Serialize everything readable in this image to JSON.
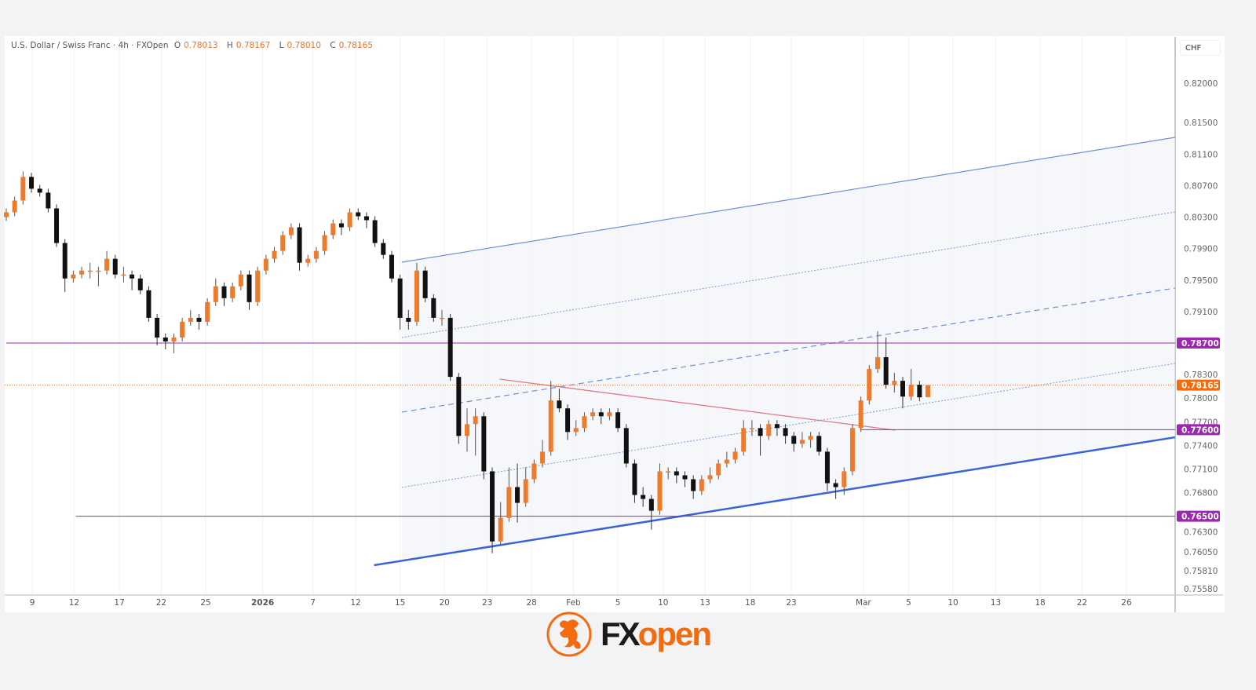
{
  "header": {
    "symbol": "U.S. Dollar / Swiss Franc · 4h · FXOpen",
    "open_label": "O",
    "open": "0.78013",
    "high_label": "H",
    "high": "0.78167",
    "low_label": "L",
    "low": "0.78010",
    "close_label": "C",
    "close": "0.78165"
  },
  "currency": "CHF",
  "logo": {
    "part1": "FX",
    "part2": "open"
  },
  "colors": {
    "bull": "#ee7a2c",
    "bear": "#111111",
    "level": "#9c27b0",
    "current": "#f26b0f",
    "channel": "#4a6fd1",
    "trend": "#e07a8a"
  },
  "chart_data": {
    "type": "candlestick",
    "title": "U.S. Dollar / Swiss Franc · 4h · FXOpen",
    "ylim": [
      0.754,
      0.826
    ],
    "yticks": [
      "0.82000",
      "0.81500",
      "0.81100",
      "0.80700",
      "0.80300",
      "0.79900",
      "0.79500",
      "0.79100",
      "0.78300",
      "0.78000",
      "0.77700",
      "0.77400",
      "0.77100",
      "0.76800",
      "0.76300",
      "0.76050",
      "0.75810",
      "0.75580"
    ],
    "xticks": [
      {
        "label": "9",
        "bar": 4.1
      },
      {
        "label": "12",
        "bar": 9.1
      },
      {
        "label": "17",
        "bar": 14.5
      },
      {
        "label": "22",
        "bar": 19.5
      },
      {
        "label": "25",
        "bar": 24.8
      },
      {
        "label": "2026",
        "bar": 31.6,
        "bold": true
      },
      {
        "label": "7",
        "bar": 37.6
      },
      {
        "label": "12",
        "bar": 42.7
      },
      {
        "label": "15",
        "bar": 48.0
      },
      {
        "label": "20",
        "bar": 53.3
      },
      {
        "label": "23",
        "bar": 58.4
      },
      {
        "label": "28",
        "bar": 63.7
      },
      {
        "label": "Feb",
        "bar": 68.7
      },
      {
        "label": "5",
        "bar": 74.0
      },
      {
        "label": "10",
        "bar": 79.4
      },
      {
        "label": "13",
        "bar": 84.4
      },
      {
        "label": "18",
        "bar": 89.8
      },
      {
        "label": "23",
        "bar": 94.7
      },
      {
        "label": "Mar",
        "bar": 103.3
      },
      {
        "label": "5",
        "bar": 108.7
      },
      {
        "label": "10",
        "bar": 114.0
      },
      {
        "label": "13",
        "bar": 119.1
      },
      {
        "label": "18",
        "bar": 124.4
      },
      {
        "label": "22",
        "bar": 129.4
      },
      {
        "label": "26",
        "bar": 134.7
      }
    ],
    "candles_ohlc": [
      [
        0.803,
        0.8041,
        0.8025,
        0.8036
      ],
      [
        0.8036,
        0.8056,
        0.8031,
        0.8051
      ],
      [
        0.8051,
        0.8088,
        0.8046,
        0.8081
      ],
      [
        0.8081,
        0.8086,
        0.8061,
        0.8066
      ],
      [
        0.8066,
        0.8071,
        0.8056,
        0.8061
      ],
      [
        0.8061,
        0.8066,
        0.8036,
        0.8041
      ],
      [
        0.8041,
        0.8046,
        0.7992,
        0.7997
      ],
      [
        0.7997,
        0.8002,
        0.7935,
        0.7952
      ],
      [
        0.7952,
        0.7962,
        0.7947,
        0.7957
      ],
      [
        0.7957,
        0.7967,
        0.7952,
        0.7962
      ],
      [
        0.7962,
        0.7972,
        0.7952,
        0.7962
      ],
      [
        0.7962,
        0.7967,
        0.7942,
        0.7962
      ],
      [
        0.7962,
        0.7987,
        0.7957,
        0.7977
      ],
      [
        0.7977,
        0.7982,
        0.7952,
        0.7957
      ],
      [
        0.7957,
        0.7967,
        0.7947,
        0.7957
      ],
      [
        0.7957,
        0.7962,
        0.7937,
        0.7952
      ],
      [
        0.7952,
        0.7957,
        0.7932,
        0.7937
      ],
      [
        0.7937,
        0.7942,
        0.7897,
        0.7902
      ],
      [
        0.7902,
        0.7907,
        0.7867,
        0.7877
      ],
      [
        0.7877,
        0.7882,
        0.7862,
        0.7872
      ],
      [
        0.7872,
        0.7882,
        0.7857,
        0.7877
      ],
      [
        0.7877,
        0.7902,
        0.7872,
        0.7897
      ],
      [
        0.7897,
        0.7912,
        0.7892,
        0.7902
      ],
      [
        0.7902,
        0.7907,
        0.7887,
        0.7897
      ],
      [
        0.7897,
        0.7927,
        0.7892,
        0.7922
      ],
      [
        0.7922,
        0.7952,
        0.7917,
        0.7942
      ],
      [
        0.7942,
        0.7947,
        0.7917,
        0.7927
      ],
      [
        0.7927,
        0.7947,
        0.7922,
        0.7942
      ],
      [
        0.7942,
        0.7962,
        0.7937,
        0.7957
      ],
      [
        0.7957,
        0.7962,
        0.7912,
        0.7922
      ],
      [
        0.7922,
        0.7967,
        0.7917,
        0.7962
      ],
      [
        0.7962,
        0.7982,
        0.7957,
        0.7977
      ],
      [
        0.7977,
        0.7992,
        0.7972,
        0.7987
      ],
      [
        0.7987,
        0.8012,
        0.7982,
        0.8007
      ],
      [
        0.8007,
        0.8022,
        0.8002,
        0.8017
      ],
      [
        0.8017,
        0.8022,
        0.7962,
        0.7972
      ],
      [
        0.7972,
        0.7982,
        0.7967,
        0.7977
      ],
      [
        0.7977,
        0.7992,
        0.7972,
        0.7987
      ],
      [
        0.7987,
        0.8012,
        0.7982,
        0.8007
      ],
      [
        0.8007,
        0.8027,
        0.8002,
        0.8022
      ],
      [
        0.8022,
        0.8027,
        0.8007,
        0.8017
      ],
      [
        0.8017,
        0.8041,
        0.8012,
        0.8036
      ],
      [
        0.8036,
        0.8041,
        0.8026,
        0.8031
      ],
      [
        0.8031,
        0.8036,
        0.8016,
        0.8026
      ],
      [
        0.8026,
        0.8031,
        0.7992,
        0.7997
      ],
      [
        0.7997,
        0.8002,
        0.7977,
        0.7982
      ],
      [
        0.7982,
        0.7987,
        0.7947,
        0.7952
      ],
      [
        0.7952,
        0.7957,
        0.7887,
        0.7902
      ],
      [
        0.7902,
        0.7912,
        0.7887,
        0.7897
      ],
      [
        0.7897,
        0.7972,
        0.7892,
        0.7962
      ],
      [
        0.7962,
        0.7967,
        0.7922,
        0.7927
      ],
      [
        0.7927,
        0.7932,
        0.7897,
        0.7902
      ],
      [
        0.7902,
        0.7912,
        0.7892,
        0.7902
      ],
      [
        0.7902,
        0.7907,
        0.7822,
        0.7827
      ],
      [
        0.7827,
        0.7832,
        0.7742,
        0.7752
      ],
      [
        0.7752,
        0.7787,
        0.7732,
        0.7767
      ],
      [
        0.7767,
        0.7787,
        0.7727,
        0.7777
      ],
      [
        0.7777,
        0.7782,
        0.7697,
        0.7707
      ],
      [
        0.7707,
        0.7712,
        0.7603,
        0.7618
      ],
      [
        0.7618,
        0.7668,
        0.7613,
        0.7648
      ],
      [
        0.7648,
        0.7712,
        0.7643,
        0.7687
      ],
      [
        0.7687,
        0.7717,
        0.7642,
        0.7667
      ],
      [
        0.7667,
        0.7712,
        0.7662,
        0.7697
      ],
      [
        0.7697,
        0.7722,
        0.7692,
        0.7717
      ],
      [
        0.7717,
        0.7747,
        0.7712,
        0.7732
      ],
      [
        0.7732,
        0.7822,
        0.7727,
        0.7797
      ],
      [
        0.7797,
        0.7812,
        0.7782,
        0.7787
      ],
      [
        0.7787,
        0.7792,
        0.7747,
        0.7757
      ],
      [
        0.7757,
        0.7772,
        0.7752,
        0.7762
      ],
      [
        0.7762,
        0.7782,
        0.7757,
        0.7777
      ],
      [
        0.7777,
        0.7787,
        0.7772,
        0.7782
      ],
      [
        0.7782,
        0.7787,
        0.7767,
        0.7777
      ],
      [
        0.7777,
        0.7787,
        0.7772,
        0.7782
      ],
      [
        0.7782,
        0.7787,
        0.7757,
        0.7762
      ],
      [
        0.7762,
        0.7767,
        0.7712,
        0.7717
      ],
      [
        0.7717,
        0.7722,
        0.7667,
        0.7677
      ],
      [
        0.7677,
        0.7687,
        0.7662,
        0.7672
      ],
      [
        0.7672,
        0.7677,
        0.7633,
        0.7657
      ],
      [
        0.7657,
        0.7717,
        0.7652,
        0.7707
      ],
      [
        0.7707,
        0.7712,
        0.7697,
        0.7707
      ],
      [
        0.7707,
        0.7712,
        0.7692,
        0.7702
      ],
      [
        0.7702,
        0.7707,
        0.7687,
        0.7697
      ],
      [
        0.7697,
        0.7702,
        0.7672,
        0.7682
      ],
      [
        0.7682,
        0.7702,
        0.7677,
        0.7697
      ],
      [
        0.7697,
        0.7712,
        0.7692,
        0.7702
      ],
      [
        0.7702,
        0.7722,
        0.7697,
        0.7717
      ],
      [
        0.7717,
        0.7732,
        0.7712,
        0.7722
      ],
      [
        0.7722,
        0.7737,
        0.7717,
        0.7732
      ],
      [
        0.7732,
        0.7772,
        0.7727,
        0.7762
      ],
      [
        0.7762,
        0.7772,
        0.7752,
        0.7762
      ],
      [
        0.7762,
        0.7767,
        0.7727,
        0.7752
      ],
      [
        0.7752,
        0.7772,
        0.7747,
        0.7767
      ],
      [
        0.7767,
        0.7772,
        0.7752,
        0.7762
      ],
      [
        0.7762,
        0.7767,
        0.7742,
        0.7752
      ],
      [
        0.7752,
        0.7757,
        0.7732,
        0.7742
      ],
      [
        0.7742,
        0.7757,
        0.7737,
        0.7747
      ],
      [
        0.7747,
        0.7757,
        0.7737,
        0.7752
      ],
      [
        0.7752,
        0.7757,
        0.7727,
        0.7732
      ],
      [
        0.7732,
        0.7737,
        0.7682,
        0.7692
      ],
      [
        0.7692,
        0.7697,
        0.7672,
        0.7687
      ],
      [
        0.7687,
        0.7712,
        0.7677,
        0.7707
      ],
      [
        0.7707,
        0.7767,
        0.7702,
        0.7762
      ],
      [
        0.7762,
        0.7802,
        0.7757,
        0.7797
      ],
      [
        0.7797,
        0.7842,
        0.7792,
        0.7837
      ],
      [
        0.7837,
        0.7885,
        0.7832,
        0.7852
      ],
      [
        0.7852,
        0.7877,
        0.7812,
        0.7817
      ],
      [
        0.7817,
        0.7832,
        0.7807,
        0.7822
      ],
      [
        0.7822,
        0.7827,
        0.7787,
        0.7802
      ],
      [
        0.7802,
        0.7837,
        0.7797,
        0.7817
      ],
      [
        0.7817,
        0.7822,
        0.7796,
        0.7801
      ],
      [
        0.78013,
        0.78167,
        0.7801,
        0.78165
      ]
    ],
    "levels": [
      {
        "price": 0.787,
        "label": "0.78700",
        "from_bar": 1
      },
      {
        "price": 0.776,
        "label": "0.77600",
        "from_bar": 103
      },
      {
        "price": 0.765,
        "label": "0.76500",
        "from_bar": 9.3
      }
    ],
    "current_price": {
      "price": 0.78165,
      "label": "0.78165"
    },
    "channel": {
      "upper": [
        [
          48.2,
          0.79727
        ],
        [
          140.5,
          0.81312
        ]
      ],
      "inner_upper_dotted": [
        [
          48.2,
          0.7877
        ],
        [
          140.5,
          0.80365
        ]
      ],
      "middle_dashed": [
        [
          48.2,
          0.77822
        ],
        [
          140.5,
          0.79398
        ]
      ],
      "inner_lower_dotted": [
        [
          48.2,
          0.76866
        ],
        [
          140.5,
          0.78441
        ]
      ],
      "lower": [
        [
          44.9,
          0.75878
        ],
        [
          140.5,
          0.77503
        ]
      ]
    },
    "trendline": [
      [
        59.9,
        0.78241
      ],
      [
        107.1,
        0.77593
      ]
    ]
  }
}
